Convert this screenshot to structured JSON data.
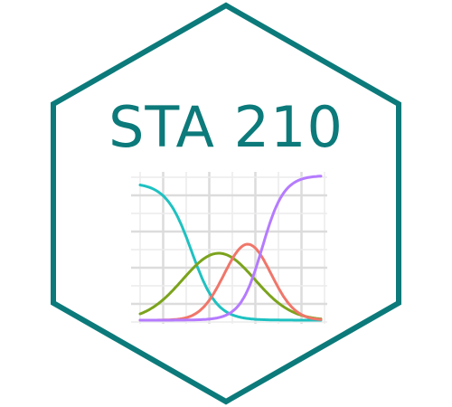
{
  "logo": {
    "title": "STA 210",
    "colors": {
      "frame": "#0c7a7a",
      "title": "#0c7a7a",
      "grid_major": "#dcdcdc",
      "grid_minor": "#ececec",
      "background": "#ffffff"
    },
    "curves": [
      {
        "name": "teal-decreasing-sigmoid",
        "color": "#1fc1c1"
      },
      {
        "name": "olive-bell-curve",
        "color": "#7ba31c"
      },
      {
        "name": "salmon-bell-curve",
        "color": "#f0766a"
      },
      {
        "name": "purple-increasing-sigmoid",
        "color": "#b57bff"
      }
    ],
    "icon": "hexagon-sticker-icon"
  }
}
